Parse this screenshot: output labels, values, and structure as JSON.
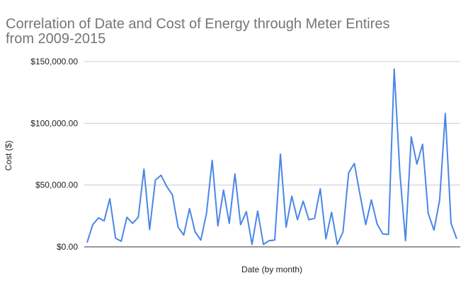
{
  "chart_data": {
    "type": "line",
    "title_line1": "Correlation of Date and Cost of Energy through Meter Entires",
    "title_line2": "from 2009-2015",
    "xlabel": "Date (by month)",
    "ylabel": "Cost ($)",
    "ylim": [
      0,
      150000
    ],
    "yticks": [
      {
        "value": 0,
        "label": "$0.00"
      },
      {
        "value": 50000,
        "label": "$50,000.00"
      },
      {
        "value": 100000,
        "label": "$100,000.00"
      },
      {
        "value": 150000,
        "label": "$150,000.00"
      }
    ],
    "grid": true,
    "legend": "none",
    "series": [
      {
        "color": "#4a86e8",
        "values": [
          3500,
          18000,
          23500,
          21000,
          39000,
          7000,
          4500,
          24000,
          19000,
          24000,
          63000,
          14000,
          54000,
          58000,
          49000,
          42000,
          16000,
          9500,
          31000,
          12000,
          5500,
          27000,
          70000,
          17000,
          46000,
          19000,
          59000,
          18000,
          28500,
          2000,
          29000,
          2000,
          5000,
          5500,
          75000,
          16000,
          41000,
          22000,
          37000,
          22000,
          23000,
          47000,
          6500,
          28000,
          2000,
          12000,
          60000,
          67500,
          42000,
          18000,
          38000,
          18500,
          10500,
          10000,
          144000,
          60000,
          5000,
          89000,
          67000,
          83000,
          27000,
          13500,
          38000,
          108000,
          19000,
          6500
        ]
      }
    ]
  }
}
